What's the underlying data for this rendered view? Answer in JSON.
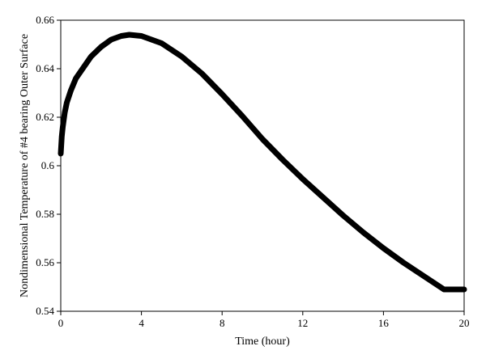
{
  "chart_data": {
    "type": "line",
    "title": "",
    "xlabel": "Time (hour)",
    "ylabel": "Nondimensional Temperature of #4 bearing Outer Surface",
    "xlim": [
      0,
      20
    ],
    "ylim": [
      0.54,
      0.66
    ],
    "xticks": [
      0,
      4,
      8,
      12,
      16,
      20
    ],
    "yticks": [
      0.54,
      0.56,
      0.58,
      0.6,
      0.62,
      0.64,
      0.66
    ],
    "ytick_labels": [
      "0.54",
      "0.56",
      "0.58",
      "0.6",
      "0.62",
      "0.64",
      "0.66"
    ],
    "grid": false,
    "legend": "none",
    "series": [
      {
        "color": "#000000",
        "x": [
          0,
          0.05,
          0.1,
          0.2,
          0.3,
          0.5,
          0.75,
          1,
          1.5,
          2,
          2.5,
          3,
          3.4,
          4,
          5,
          6,
          7,
          8,
          9,
          10,
          11,
          12,
          13,
          14,
          15,
          16,
          17,
          18,
          19,
          20
        ],
        "y": [
          0.605,
          0.612,
          0.616,
          0.622,
          0.626,
          0.631,
          0.636,
          0.639,
          0.645,
          0.649,
          0.652,
          0.6535,
          0.654,
          0.6535,
          0.6505,
          0.645,
          0.638,
          0.6295,
          0.6205,
          0.611,
          0.6025,
          0.5945,
          0.587,
          0.5795,
          0.5725,
          0.566,
          0.56,
          0.5545,
          0.549,
          0.549
        ]
      }
    ]
  }
}
